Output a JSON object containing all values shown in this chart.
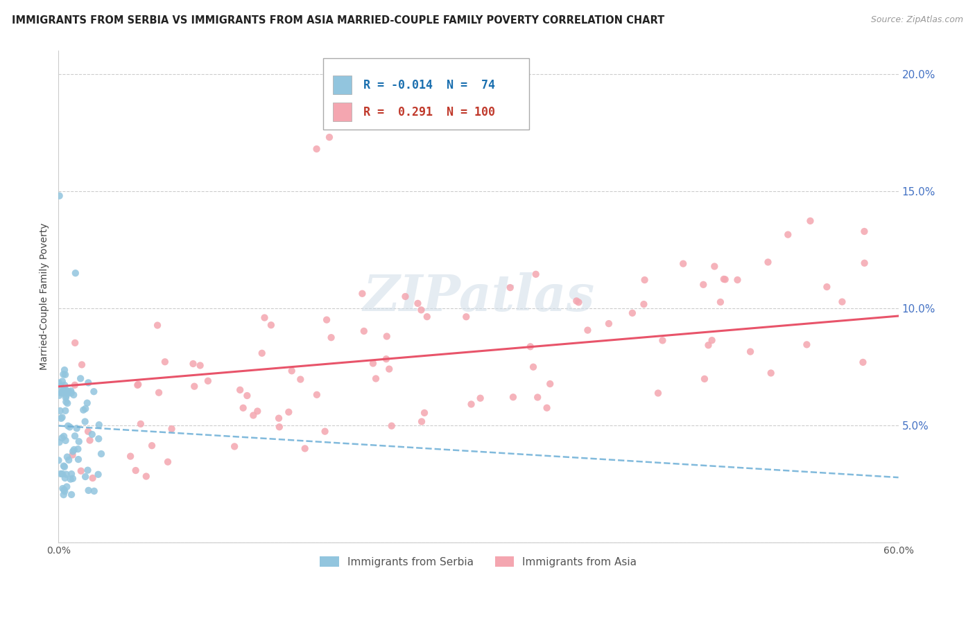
{
  "title": "IMMIGRANTS FROM SERBIA VS IMMIGRANTS FROM ASIA MARRIED-COUPLE FAMILY POVERTY CORRELATION CHART",
  "source": "Source: ZipAtlas.com",
  "ylabel": "Married-Couple Family Poverty",
  "serbia_R": -0.014,
  "serbia_N": 74,
  "asia_R": 0.291,
  "asia_N": 100,
  "serbia_color": "#92c5de",
  "asia_color": "#f4a6b0",
  "serbia_line_color": "#6baed6",
  "asia_line_color": "#e8546a",
  "watermark": "ZIPatlas",
  "x_min": 0.0,
  "x_max": 0.6,
  "y_min": 0.0,
  "y_max": 0.21,
  "y_ticks": [
    0.0,
    0.05,
    0.1,
    0.15,
    0.2
  ],
  "y_tick_labels_right": [
    "",
    "5.0%",
    "10.0%",
    "15.0%",
    "20.0%"
  ],
  "legend_serbia_label": "Immigrants from Serbia",
  "legend_asia_label": "Immigrants from Asia"
}
